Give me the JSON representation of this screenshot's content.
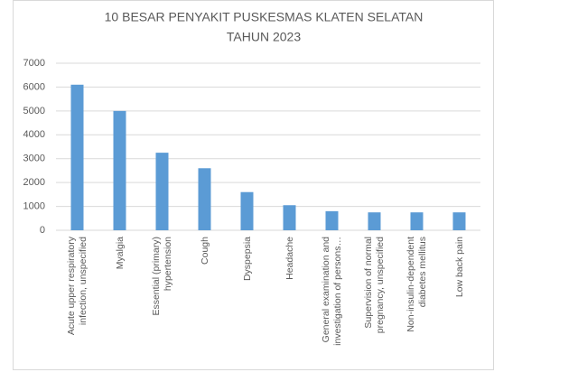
{
  "chart_data": {
    "type": "bar",
    "title": [
      "10 BESAR PENYAKIT PUSKESMAS  KLATEN SELATAN",
      "TAHUN 2023"
    ],
    "categories": [
      "Acute upper respiratory infection, unspecified",
      "Myalgia",
      "Essential (primary) hypertension",
      "Cough",
      "Dyspepsia",
      "Headache",
      "General examination and investigation of persons…",
      "Supervision of normal pregnancy, unspecified",
      "Non-insulin-dependent diabetes mellitus",
      "Low back pain"
    ],
    "values": [
      6100,
      5000,
      3250,
      2600,
      1600,
      1050,
      800,
      750,
      750,
      750
    ],
    "color": "#5b9bd5",
    "ylim": [
      0,
      7000
    ],
    "yticks": [
      0,
      1000,
      2000,
      3000,
      4000,
      5000,
      6000,
      7000
    ],
    "grid": true
  }
}
